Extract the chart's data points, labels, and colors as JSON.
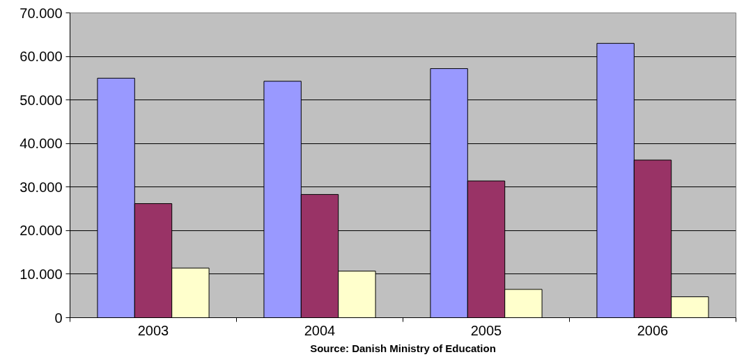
{
  "chart_data": {
    "type": "bar",
    "categories": [
      "2003",
      "2004",
      "2005",
      "2006"
    ],
    "series": [
      {
        "color": "#9999ff",
        "values": [
          55000,
          54300,
          57200,
          63000
        ]
      },
      {
        "color": "#993366",
        "values": [
          26200,
          28300,
          31400,
          36200
        ]
      },
      {
        "color": "#ffffcc",
        "values": [
          11400,
          10700,
          6500,
          4800
        ]
      }
    ],
    "ylim": [
      0,
      70000
    ],
    "yticks": [
      0,
      {
        "value": 10000,
        "label": "10.000"
      },
      {
        "value": 20000,
        "label": "20.000"
      },
      {
        "value": 30000,
        "label": "30.000"
      },
      {
        "value": 40000,
        "label": "40.000"
      },
      {
        "value": 50000,
        "label": "50.000"
      },
      {
        "value": 60000,
        "label": "60.000"
      },
      {
        "value": 70000,
        "label": "70.000"
      }
    ],
    "grid": "y",
    "annotations": [
      "Source: Danish Ministry of Education"
    ]
  }
}
